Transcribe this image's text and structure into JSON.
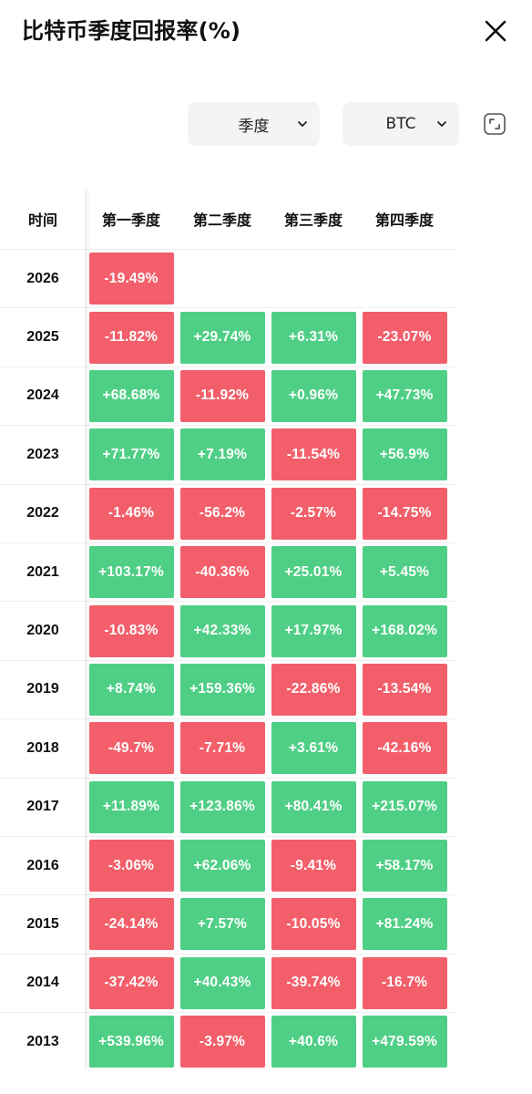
{
  "header": {
    "title": "比特币季度回报率(%)"
  },
  "filters": {
    "period_label": "季度",
    "coin_label": "BTC"
  },
  "colors": {
    "positive": "#4fcf85",
    "negative": "#f25f6a"
  },
  "table": {
    "columns": [
      "时间",
      "第一季度",
      "第二季度",
      "第三季度",
      "第四季度"
    ],
    "rows": [
      {
        "year": "2026",
        "q": [
          "-19.49%",
          "",
          "",
          ""
        ]
      },
      {
        "year": "2025",
        "q": [
          "-11.82%",
          "+29.74%",
          "+6.31%",
          "-23.07%"
        ]
      },
      {
        "year": "2024",
        "q": [
          "+68.68%",
          "-11.92%",
          "+0.96%",
          "+47.73%"
        ]
      },
      {
        "year": "2023",
        "q": [
          "+71.77%",
          "+7.19%",
          "-11.54%",
          "+56.9%"
        ]
      },
      {
        "year": "2022",
        "q": [
          "-1.46%",
          "-56.2%",
          "-2.57%",
          "-14.75%"
        ]
      },
      {
        "year": "2021",
        "q": [
          "+103.17%",
          "-40.36%",
          "+25.01%",
          "+5.45%"
        ]
      },
      {
        "year": "2020",
        "q": [
          "-10.83%",
          "+42.33%",
          "+17.97%",
          "+168.02%"
        ]
      },
      {
        "year": "2019",
        "q": [
          "+8.74%",
          "+159.36%",
          "-22.86%",
          "-13.54%"
        ]
      },
      {
        "year": "2018",
        "q": [
          "-49.7%",
          "-7.71%",
          "+3.61%",
          "-42.16%"
        ]
      },
      {
        "year": "2017",
        "q": [
          "+11.89%",
          "+123.86%",
          "+80.41%",
          "+215.07%"
        ]
      },
      {
        "year": "2016",
        "q": [
          "-3.06%",
          "+62.06%",
          "-9.41%",
          "+58.17%"
        ]
      },
      {
        "year": "2015",
        "q": [
          "-24.14%",
          "+7.57%",
          "-10.05%",
          "+81.24%"
        ]
      },
      {
        "year": "2014",
        "q": [
          "-37.42%",
          "+40.43%",
          "-39.74%",
          "-16.7%"
        ]
      },
      {
        "year": "2013",
        "q": [
          "+539.96%",
          "-3.97%",
          "+40.6%",
          "+479.59%"
        ]
      }
    ]
  }
}
